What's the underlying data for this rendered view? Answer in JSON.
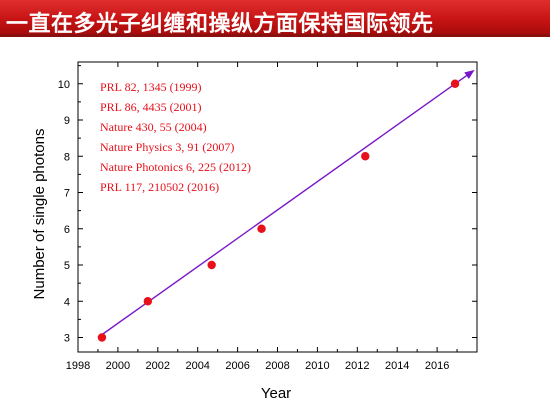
{
  "slide": {
    "title": "一直在多光子纠缠和操纵方面保持国际领先"
  },
  "colors": {
    "banner": "#c81414",
    "points": "#e8101a",
    "fit_line": "#7a18c8",
    "annotations": "#e8101a"
  },
  "chart_data": {
    "type": "scatter",
    "xlabel": "Year",
    "ylabel": "Number of single photons",
    "xlim": [
      1998,
      2018
    ],
    "ylim": [
      2.6,
      10.6
    ],
    "x_ticks": [
      1998,
      2000,
      2002,
      2004,
      2006,
      2008,
      2010,
      2012,
      2014,
      2016
    ],
    "y_ticks": [
      3,
      4,
      5,
      6,
      7,
      8,
      9,
      10
    ],
    "series": [
      {
        "points": [
          {
            "x": 1999.2,
            "y": 3
          },
          {
            "x": 2001.5,
            "y": 4
          },
          {
            "x": 2004.7,
            "y": 5
          },
          {
            "x": 2007.2,
            "y": 6
          },
          {
            "x": 2012.4,
            "y": 8
          },
          {
            "x": 2016.9,
            "y": 10
          }
        ]
      }
    ],
    "fit_line": {
      "x_start": 1999.0,
      "y_start": 3.0,
      "x_end": 2017.8,
      "y_end": 10.35
    },
    "annotations": [
      "PRL 82, 1345 (1999)",
      "PRL 86, 4435 (2001)",
      "Nature 430, 55 (2004)",
      "Nature Physics 3, 91 (2007)",
      "Nature Photonics 6, 225 (2012)",
      "PRL 117, 210502 (2016)"
    ]
  }
}
